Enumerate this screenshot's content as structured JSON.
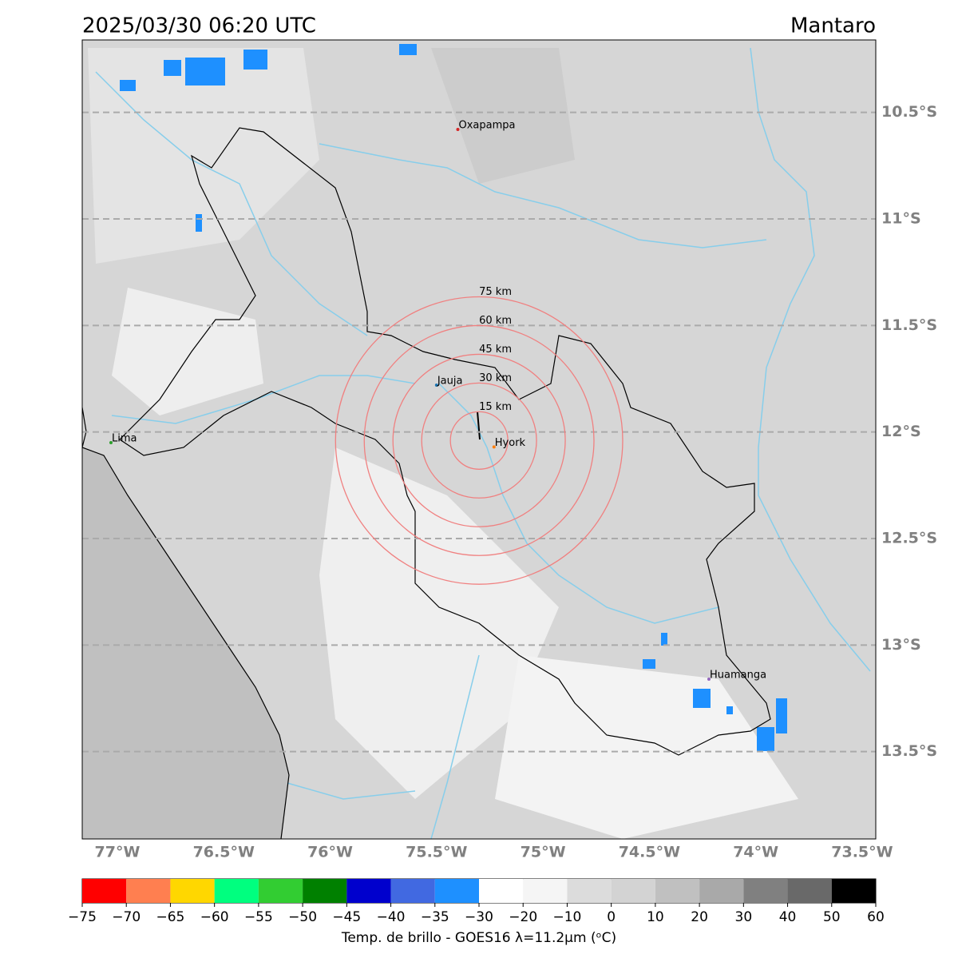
{
  "header": {
    "title": "2025/03/30 06:20 UTC",
    "region": "Mantaro"
  },
  "map": {
    "xlim": [
      -77.165,
      -73.436
    ],
    "ylim": [
      -13.91,
      -10.16
    ],
    "lon_ticks": [
      {
        "value": -77,
        "label": "77°W"
      },
      {
        "value": -76.5,
        "label": "76.5°W"
      },
      {
        "value": -76,
        "label": "76°W"
      },
      {
        "value": -75.5,
        "label": "75.5°W"
      },
      {
        "value": -75,
        "label": "75°W"
      },
      {
        "value": -74.5,
        "label": "74.5°W"
      },
      {
        "value": -74,
        "label": "74°W"
      },
      {
        "value": -73.5,
        "label": "73.5°W"
      }
    ],
    "lat_ticks": [
      {
        "value": -10.5,
        "label": "10.5°S"
      },
      {
        "value": -11,
        "label": "11°S"
      },
      {
        "value": -11.5,
        "label": "11.5°S"
      },
      {
        "value": -12,
        "label": "12°S"
      },
      {
        "value": -12.5,
        "label": "12.5°S"
      },
      {
        "value": -13,
        "label": "13°S"
      },
      {
        "value": -13.5,
        "label": "13.5°S"
      }
    ],
    "cities": [
      {
        "name": "Oxapampa",
        "lon": -75.4,
        "lat": -10.58,
        "color": "#d62728"
      },
      {
        "name": "Jauja",
        "lon": -75.5,
        "lat": -11.78,
        "color": "#1f77b4"
      },
      {
        "name": "Hyork",
        "lon": -75.23,
        "lat": -12.07,
        "color": "#ff7f0e"
      },
      {
        "name": "Lima",
        "lon": -77.03,
        "lat": -12.05,
        "color": "#2ca02c"
      },
      {
        "name": "Huamanga",
        "lon": -74.22,
        "lat": -13.16,
        "color": "#9467bd"
      }
    ],
    "rings": {
      "center_lon": -75.3,
      "center_lat": -12.04,
      "values": [
        15,
        30,
        45,
        60,
        75
      ],
      "value_labels": [
        "15 km",
        "30 km",
        "45 km",
        "60 km",
        "75 km"
      ],
      "color": "#f08080"
    }
  },
  "colorbar": {
    "label": "Temp. de brillo - GOES16 λ=11.2μm (ᵒC)",
    "bounds": [
      {
        "value": -75,
        "label": "−75"
      },
      {
        "value": -70,
        "label": "−70"
      },
      {
        "value": -65,
        "label": "−65"
      },
      {
        "value": -60,
        "label": "−60"
      },
      {
        "value": -55,
        "label": "−55"
      },
      {
        "value": -50,
        "label": "−50"
      },
      {
        "value": -45,
        "label": "−45"
      },
      {
        "value": -40,
        "label": "−40"
      },
      {
        "value": -35,
        "label": "−35"
      },
      {
        "value": -30,
        "label": "−30"
      },
      {
        "value": -20,
        "label": "−20"
      },
      {
        "value": -10,
        "label": "−10"
      },
      0,
      10,
      20,
      30,
      40,
      50,
      60
    ],
    "colors": [
      "#ff0000",
      "#ff7f50",
      "#ffd700",
      "#00ff7f",
      "#32cd32",
      "#008000",
      "#0000cd",
      "#4169e1",
      "#1e90ff",
      "#ffffff",
      "#f5f5f5",
      "#dcdcdc",
      "#d3d3d3",
      "#c0c0c0",
      "#a9a9a9",
      "#808080",
      "#696969",
      "#000000"
    ]
  }
}
